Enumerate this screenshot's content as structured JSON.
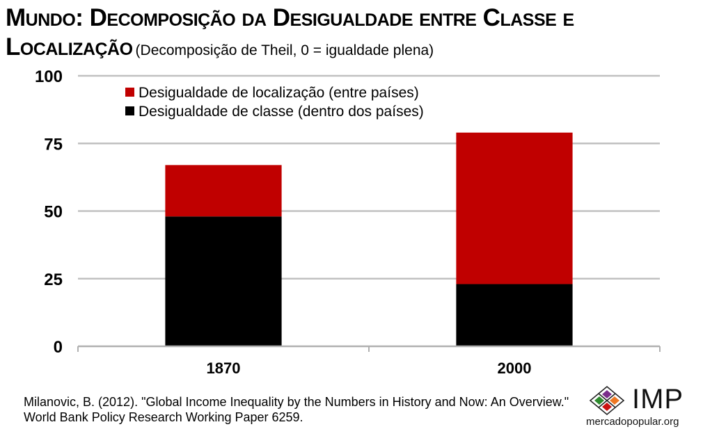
{
  "header": {
    "title_line1": "Mundo: Decomposição da Desigualdade entre Classe e",
    "title_line2": "Localização",
    "subtitle": "(Decomposição de Theil, 0 = igualdade plena)"
  },
  "chart_data": {
    "type": "bar",
    "stacked": true,
    "categories": [
      "1870",
      "2000"
    ],
    "series": [
      {
        "name": "Desigualdade de classe (dentro dos países)",
        "values": [
          48,
          23
        ],
        "color": "#000000"
      },
      {
        "name": "Desigualdade de localização (entre países)",
        "values": [
          19,
          56
        ],
        "color": "#c00000"
      }
    ],
    "ylim": [
      0,
      100
    ],
    "yticks": [
      "0",
      "25",
      "50",
      "75",
      "100"
    ],
    "grid": true,
    "legend_placement": "top-left"
  },
  "source": "Milanovic, B. (2012). \"Global Income Inequality by the Numbers in History and Now: An Overview.\" World Bank Policy Research Working Paper 6259.",
  "logo": {
    "text": "IMP",
    "url": "mercadopopular.org",
    "colors": [
      "#7b2d8b",
      "#2e8b2e",
      "#ee7722",
      "#cc1111"
    ]
  }
}
